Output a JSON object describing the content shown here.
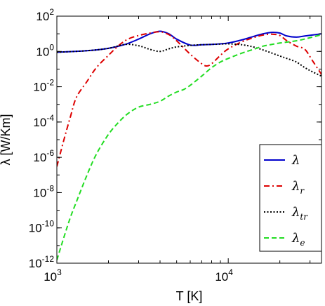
{
  "chart_data": {
    "type": "line",
    "title": "",
    "xlabel": "T [K]",
    "ylabel": "λ [W/Km]",
    "xscale": "log",
    "yscale": "log",
    "xlim": [
      1000,
      35000
    ],
    "ylim": [
      1e-12,
      100
    ],
    "grid": false,
    "legend_position": "lower-right",
    "x_ticks": [
      {
        "base": "10",
        "exp": "3",
        "value": 1000
      },
      {
        "base": "10",
        "exp": "4",
        "value": 10000
      }
    ],
    "y_ticks": [
      {
        "base": "10",
        "exp": "2",
        "value": 100
      },
      {
        "base": "10",
        "exp": "0",
        "value": 1
      },
      {
        "base": "10",
        "exp": "-2",
        "value": 0.01
      },
      {
        "base": "10",
        "exp": "-4",
        "value": 0.0001
      },
      {
        "base": "10",
        "exp": "-6",
        "value": 1e-06
      },
      {
        "base": "10",
        "exp": "-8",
        "value": 1e-08
      },
      {
        "base": "10",
        "exp": "-10",
        "value": 1e-10
      },
      {
        "base": "10",
        "exp": "-12",
        "value": 1e-12
      }
    ],
    "series": [
      {
        "name": "λ",
        "legend_base": "λ",
        "legend_sub": "",
        "color": "#0000cc",
        "style": "solid",
        "x": [
          1000,
          1500,
          2000,
          2500,
          3000,
          3500,
          4000,
          4500,
          5000,
          6000,
          7000,
          8000,
          9000,
          10000,
          12000,
          14000,
          16000,
          18000,
          20000,
          22000,
          25000,
          28000,
          31000,
          35000
        ],
        "y": [
          0.9,
          1.1,
          1.5,
          2.5,
          5,
          10,
          14,
          10,
          5,
          2.3,
          2.4,
          2.5,
          2.7,
          3,
          4.5,
          7,
          10,
          12,
          11,
          7.5,
          6.5,
          7.5,
          8.5,
          10
        ]
      },
      {
        "name": "λr",
        "legend_base": "λ",
        "legend_sub": "r",
        "color": "#dd0000",
        "style": "dashdot",
        "x": [
          1000,
          1100,
          1200,
          1300,
          1500,
          1700,
          2000,
          2300,
          2600,
          3000,
          3500,
          4000,
          4500,
          5000,
          6000,
          7000,
          7500,
          8000,
          9000,
          10000,
          12000,
          14000,
          16000,
          18000,
          20000,
          22000,
          25000,
          28000,
          31000,
          35000
        ],
        "y": [
          3e-07,
          1e-05,
          0.0002,
          0.0025,
          0.02,
          0.12,
          0.6,
          2.2,
          5,
          8,
          11,
          13,
          9,
          4,
          0.7,
          0.2,
          0.15,
          0.2,
          0.6,
          1.4,
          3.5,
          6,
          8.5,
          9.5,
          8,
          4,
          2,
          1.3,
          0.3,
          0.05
        ]
      },
      {
        "name": "λtr",
        "legend_base": "λ",
        "legend_sub": "tr",
        "color": "#000000",
        "style": "dotted",
        "x": [
          1000,
          1500,
          2000,
          2500,
          3000,
          3500,
          4000,
          4500,
          5000,
          6000,
          7000,
          8000,
          9000,
          10000,
          12000,
          14000,
          16000,
          18000,
          20000,
          22000,
          25000,
          28000,
          31000,
          35000
        ],
        "y": [
          0.9,
          1.1,
          1.5,
          2.5,
          2.1,
          1.3,
          1,
          1.4,
          1.8,
          2.2,
          2.4,
          2.5,
          2.6,
          2.7,
          2.4,
          1.8,
          1.2,
          0.8,
          0.55,
          0.4,
          0.25,
          0.12,
          0.07,
          0.04
        ]
      },
      {
        "name": "λe",
        "legend_base": "λ",
        "legend_sub": "e",
        "color": "#22dd22",
        "style": "dashed",
        "x": [
          1000,
          1100,
          1200,
          1300,
          1500,
          1700,
          2000,
          2300,
          2600,
          3000,
          3500,
          4000,
          4500,
          5000,
          5500,
          6000,
          7000,
          8000,
          9000,
          10000,
          12000,
          14000,
          16000,
          18000,
          20000,
          25000,
          30000,
          35000
        ],
        "y": [
          1.5e-12,
          3e-11,
          4e-10,
          3e-09,
          1e-07,
          1.5e-06,
          2e-05,
          0.0001,
          0.0003,
          0.0007,
          0.001,
          0.0015,
          0.003,
          0.005,
          0.007,
          0.012,
          0.04,
          0.12,
          0.25,
          0.4,
          0.8,
          1.3,
          2,
          2.5,
          3,
          4,
          6,
          9
        ]
      }
    ]
  }
}
